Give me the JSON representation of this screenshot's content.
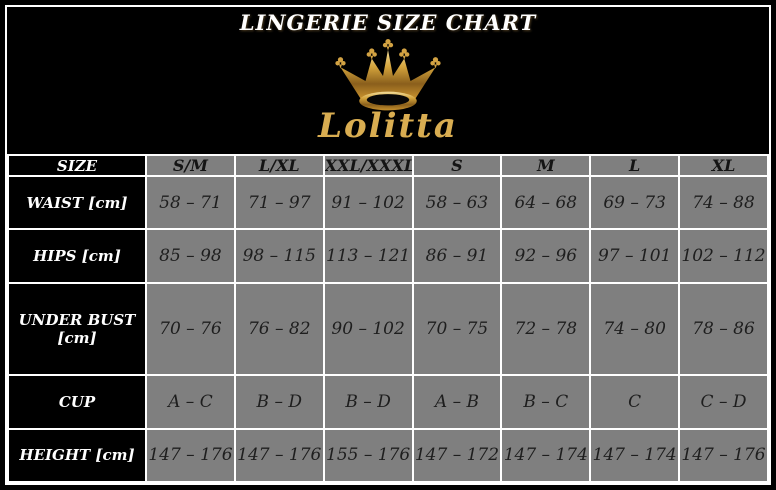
{
  "header": {
    "title": "LINGERIE SIZE CHART",
    "brand": "Lolitta"
  },
  "colors": {
    "background": "#000000",
    "grid": "#ffffff",
    "cell_gray": "#7f7f7f",
    "label_text": "#ffffff",
    "value_text": "#1e1e1e",
    "gold": "#d9ad51"
  },
  "chart_data": {
    "type": "table",
    "title": "LINGERIE SIZE CHART",
    "corner_label": "SIZE",
    "columns": [
      "S/M",
      "L/XL",
      "XXL/XXXL",
      "S",
      "M",
      "L",
      "XL"
    ],
    "rows": [
      {
        "label": "WAIST [cm]",
        "values": [
          "58 – 71",
          "71 – 97",
          "91 – 102",
          "58 – 63",
          "64 – 68",
          "69 – 73",
          "74 – 88"
        ]
      },
      {
        "label": "HIPS [cm]",
        "values": [
          "85 – 98",
          "98 – 115",
          "113 – 121",
          "86 – 91",
          "92 – 96",
          "97 – 101",
          "102 – 112"
        ]
      },
      {
        "label": "UNDER BUST [cm]",
        "values": [
          "70 – 76",
          "76 – 82",
          "90 – 102",
          "70 – 75",
          "72 – 78",
          "74 – 80",
          "78 – 86"
        ]
      },
      {
        "label": "CUP",
        "values": [
          "A – C",
          "B – D",
          "B – D",
          "A – B",
          "B – C",
          "C",
          "C – D"
        ]
      },
      {
        "label": "HEIGHT [cm]",
        "values": [
          "147 – 176",
          "147 – 176",
          "155 – 176",
          "147 – 172",
          "147 – 174",
          "147 – 174",
          "147 – 176"
        ]
      }
    ]
  }
}
